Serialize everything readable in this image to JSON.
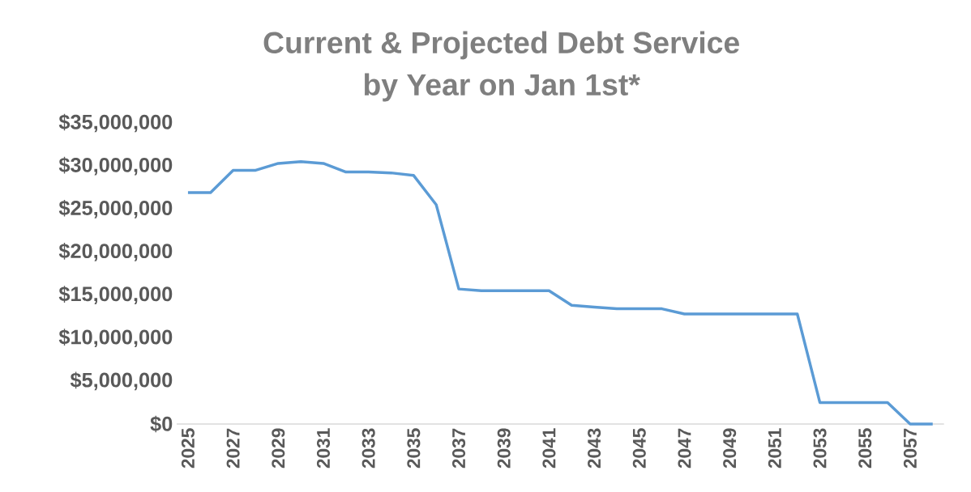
{
  "chart_data": {
    "type": "line",
    "title": "Current & Projected Debt Service",
    "subtitle": "by Year on Jan 1st*",
    "categories": [
      "2025",
      null,
      "2027",
      null,
      "2029",
      null,
      "2031",
      null,
      "2033",
      null,
      "2035",
      null,
      "2037",
      null,
      "2039",
      null,
      "2041",
      null,
      "2043",
      null,
      "2045",
      null,
      "2047",
      null,
      "2049",
      null,
      "2051",
      null,
      "2053",
      null,
      "2055",
      null,
      "2057",
      null
    ],
    "series": [
      {
        "color": "#5b9bd5",
        "values": [
          26900000,
          26900000,
          29500000,
          29500000,
          30300000,
          30500000,
          30300000,
          29300000,
          29300000,
          29200000,
          28900000,
          25500000,
          15700000,
          15500000,
          15500000,
          15500000,
          15500000,
          13800000,
          13600000,
          13400000,
          13400000,
          13400000,
          12800000,
          12800000,
          12800000,
          12800000,
          12800000,
          12800000,
          2500000,
          2500000,
          2500000,
          2500000,
          0,
          0
        ]
      }
    ],
    "ylim": [
      0,
      35000000
    ],
    "yticks": [
      {
        "value": 0,
        "label": "$0"
      },
      {
        "value": 5000000,
        "label": "$5,000,000"
      },
      {
        "value": 10000000,
        "label": "$10,000,000"
      },
      {
        "value": 15000000,
        "label": "$15,000,000"
      },
      {
        "value": 20000000,
        "label": "$20,000,000"
      },
      {
        "value": 25000000,
        "label": "$25,000,000"
      },
      {
        "value": 30000000,
        "label": "$30,000,000"
      },
      {
        "value": 35000000,
        "label": "$35,000,000"
      }
    ],
    "grid": false,
    "marker": "none",
    "line_style": "solid"
  }
}
